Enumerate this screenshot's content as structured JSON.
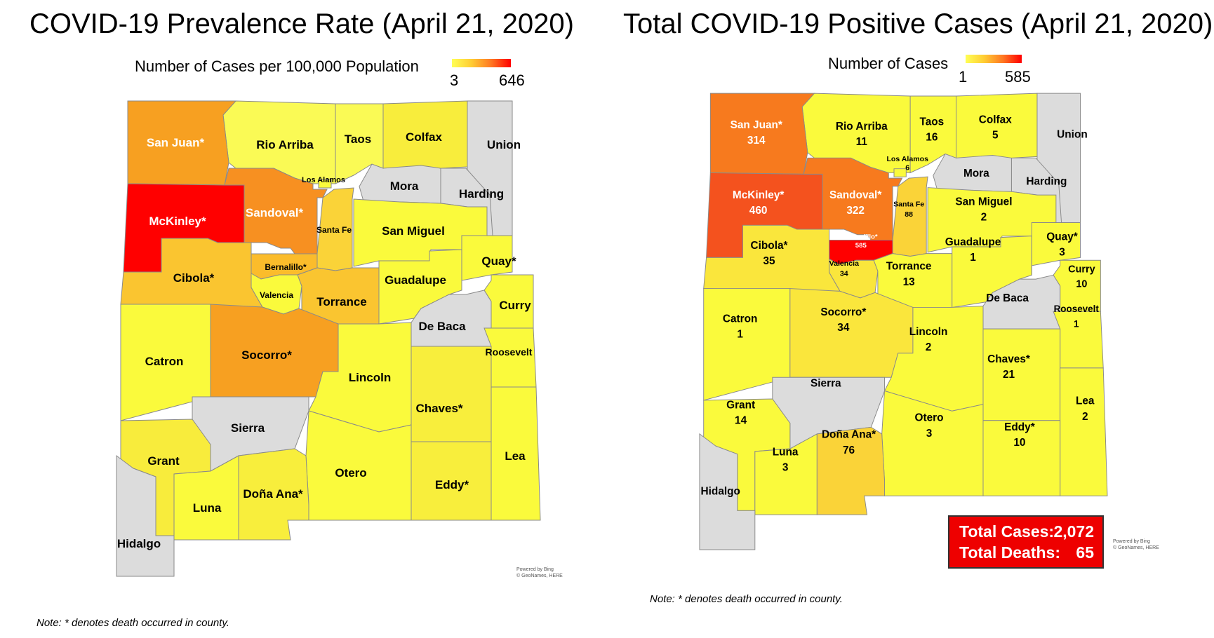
{
  "left_map": {
    "title": "COVID-19 Prevalence Rate (April 21, 2020)",
    "legend_label": "Number of Cases per 100,000 Population",
    "legend_min": "3",
    "legend_max": "646",
    "note": "Note: * denotes death occurred in county.",
    "credit_line1": "Powered by Bing",
    "credit_line2": "© GeoNames, HERE",
    "counties": {
      "san_juan": "San Juan*",
      "rio_arriba": "Rio Arriba",
      "taos": "Taos",
      "colfax": "Colfax",
      "union": "Union",
      "los_alamos": "Los Alamos",
      "mora": "Mora",
      "harding": "Harding",
      "mckinley": "McKinley*",
      "sandoval": "Sandoval*",
      "santa_fe": "Santa Fe",
      "san_miguel": "San Miguel",
      "bernalillo": "Bernalillo*",
      "cibola": "Cibola*",
      "quay": "Quay*",
      "valencia": "Valencia",
      "guadalupe": "Guadalupe",
      "torrance": "Torrance",
      "curry": "Curry",
      "de_baca": "De Baca",
      "catron": "Catron",
      "socorro": "Socorro*",
      "roosevelt": "Roosevelt",
      "lincoln": "Lincoln",
      "chaves": "Chaves*",
      "sierra": "Sierra",
      "grant": "Grant",
      "lea": "Lea",
      "dona_ana": "Doña Ana*",
      "otero": "Otero",
      "eddy": "Eddy*",
      "luna": "Luna",
      "hidalgo": "Hidalgo"
    },
    "fill_colors": {
      "san_juan": "#f7a021",
      "rio_arriba": "#fafa55",
      "taos": "#fafa55",
      "colfax": "#f8ed3c",
      "union": "#dcdcdc",
      "mora": "#dcdcdc",
      "harding": "#dcdcdc",
      "mckinley": "#ff0000",
      "sandoval": "#f79021",
      "santa_fe": "#fad338",
      "san_miguel": "#fafa3c",
      "bernalillo": "#fbbc2b",
      "cibola": "#fac530",
      "quay": "#fafa3c",
      "valencia": "#fafa3c",
      "guadalupe": "#fafa3c",
      "torrance": "#fac530",
      "curry": "#fafa3c",
      "de_baca": "#dcdcdc",
      "catron": "#fafa3c",
      "socorro": "#f7a021",
      "roosevelt": "#fafa3c",
      "lincoln": "#fafa3c",
      "chaves": "#f8ee3c",
      "sierra": "#dcdcdc",
      "grant": "#f8ec3c",
      "lea": "#fafa3c",
      "dona_ana": "#f8ee3c",
      "otero": "#fafa3c",
      "eddy": "#f8ee3c",
      "luna": "#fafa3c",
      "hidalgo": "#dcdcdc"
    }
  },
  "right_map": {
    "title": "Total COVID-19 Positive Cases (April 21, 2020)",
    "legend_label": "Number of Cases",
    "legend_min": "1",
    "legend_max": "585",
    "note": "Note: * denotes death occurred in county.",
    "credit_line1": "Powered by Bing",
    "credit_line2": "© GeoNames, HERE",
    "total_cases_label": "Total Cases:",
    "total_cases_value": "2,072",
    "total_deaths_label": "Total Deaths:",
    "total_deaths_value": "65",
    "counties": {
      "san_juan": {
        "name": "San Juan*",
        "cases": "314"
      },
      "rio_arriba": {
        "name": "Rio Arriba",
        "cases": "11"
      },
      "taos": {
        "name": "Taos",
        "cases": "16"
      },
      "colfax": {
        "name": "Colfax",
        "cases": "5"
      },
      "union": {
        "name": "Union",
        "cases": ""
      },
      "los_alamos": {
        "name": "Los Alamos",
        "cases": "6"
      },
      "mora": {
        "name": "Mora",
        "cases": ""
      },
      "harding": {
        "name": "Harding",
        "cases": ""
      },
      "mckinley": {
        "name": "McKinley*",
        "cases": "460"
      },
      "sandoval": {
        "name": "Sandoval*",
        "cases": "322"
      },
      "santa_fe": {
        "name": "Santa Fe",
        "cases": "88"
      },
      "san_miguel": {
        "name": "San Miguel",
        "cases": "2"
      },
      "bernalillo": {
        "name": "Bernalillo*",
        "cases": "585"
      },
      "cibola": {
        "name": "Cibola*",
        "cases": "35"
      },
      "quay": {
        "name": "Quay*",
        "cases": "3"
      },
      "valencia": {
        "name": "Valencia",
        "cases": "34"
      },
      "guadalupe": {
        "name": "Guadalupe",
        "cases": "1"
      },
      "torrance": {
        "name": "Torrance",
        "cases": "13"
      },
      "curry": {
        "name": "Curry",
        "cases": "10"
      },
      "de_baca": {
        "name": "De Baca",
        "cases": ""
      },
      "catron": {
        "name": "Catron",
        "cases": "1"
      },
      "socorro": {
        "name": "Socorro*",
        "cases": "34"
      },
      "roosevelt": {
        "name": "Roosevelt",
        "cases": "1"
      },
      "lincoln": {
        "name": "Lincoln",
        "cases": "2"
      },
      "chaves": {
        "name": "Chaves*",
        "cases": "21"
      },
      "sierra": {
        "name": "Sierra",
        "cases": ""
      },
      "grant": {
        "name": "Grant",
        "cases": "14"
      },
      "lea": {
        "name": "Lea",
        "cases": "2"
      },
      "dona_ana": {
        "name": "Doña Ana*",
        "cases": "76"
      },
      "otero": {
        "name": "Otero",
        "cases": "3"
      },
      "eddy": {
        "name": "Eddy*",
        "cases": "10"
      },
      "luna": {
        "name": "Luna",
        "cases": "3"
      },
      "hidalgo": {
        "name": "Hidalgo",
        "cases": ""
      }
    },
    "fill_colors": {
      "san_juan": "#f77a1e",
      "rio_arriba": "#fafa3c",
      "taos": "#fafa3c",
      "colfax": "#fafa3c",
      "union": "#dcdcdc",
      "mora": "#dcdcdc",
      "harding": "#dcdcdc",
      "mckinley": "#f4521e",
      "sandoval": "#f77a1e",
      "santa_fe": "#fad338",
      "san_miguel": "#fafa3c",
      "bernalillo": "#ff0000",
      "cibola": "#fae63c",
      "quay": "#fafa3c",
      "valencia": "#fae63c",
      "guadalupe": "#fafa3c",
      "torrance": "#fafa3c",
      "curry": "#fafa3c",
      "de_baca": "#dcdcdc",
      "catron": "#fafa3c",
      "socorro": "#fae63c",
      "roosevelt": "#fafa3c",
      "lincoln": "#fafa3c",
      "chaves": "#fafa3c",
      "sierra": "#dcdcdc",
      "grant": "#fafa3c",
      "lea": "#fafa3c",
      "dona_ana": "#fad338",
      "otero": "#fafa3c",
      "eddy": "#fafa3c",
      "luna": "#fafa3c",
      "hidalgo": "#dcdcdc"
    }
  }
}
